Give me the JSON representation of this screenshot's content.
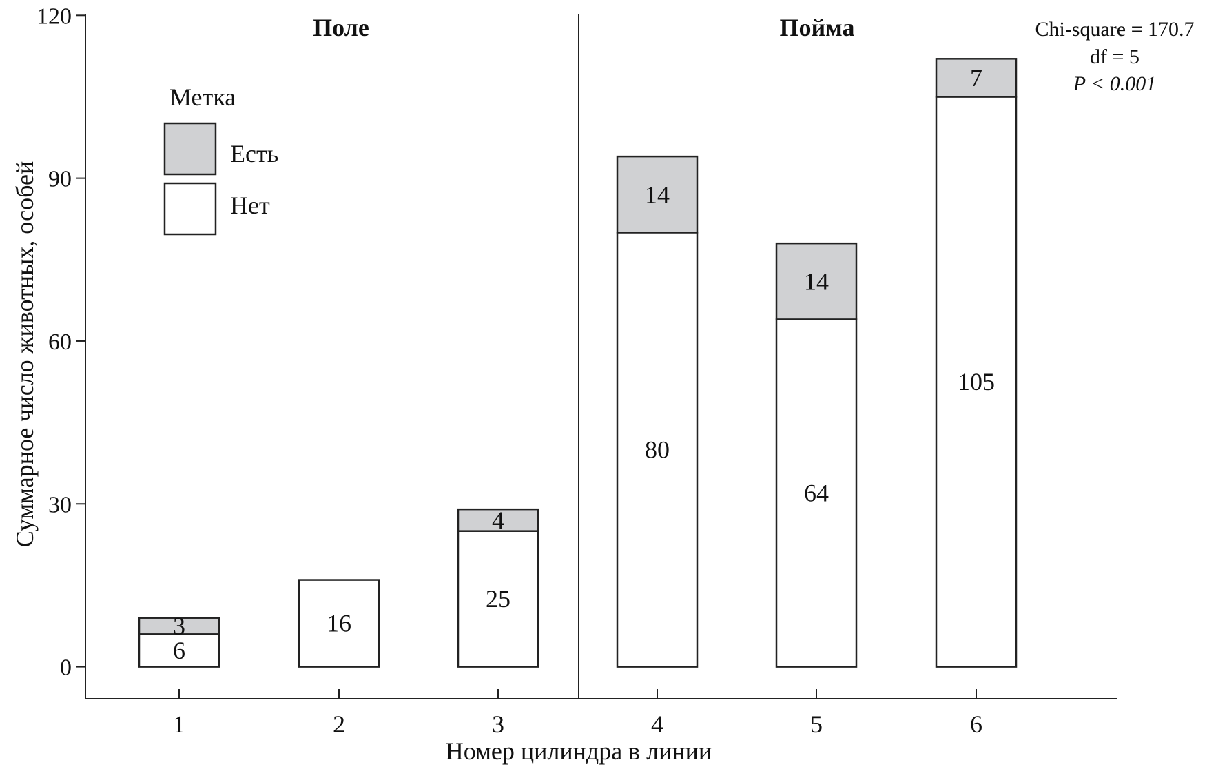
{
  "chart_data": {
    "type": "bar",
    "stacked": true,
    "categories": [
      "1",
      "2",
      "3",
      "4",
      "5",
      "6"
    ],
    "series": [
      {
        "name": "Нет",
        "color": "#ffffff",
        "values": [
          6,
          16,
          25,
          80,
          64,
          105
        ]
      },
      {
        "name": "Есть",
        "color": "#d0d1d3",
        "values": [
          3,
          0,
          4,
          14,
          14,
          7
        ]
      }
    ],
    "xlabel": "Номер цилиндра в линии",
    "ylabel": "Суммарное число животных, особей",
    "ylim": [
      0,
      120
    ],
    "yticks": [
      0,
      30,
      60,
      90,
      120
    ],
    "grid": false,
    "legend": {
      "title": "Метка",
      "placement": "top-left",
      "entries": [
        "Есть",
        "Нет"
      ]
    },
    "panels": [
      {
        "label": "Поле",
        "categories": [
          "1",
          "2",
          "3"
        ]
      },
      {
        "label": "Пойма",
        "categories": [
          "4",
          "5",
          "6"
        ]
      }
    ],
    "annotations": [
      "Chi-square = 170.7",
      "df = 5",
      "P < 0.001"
    ]
  }
}
